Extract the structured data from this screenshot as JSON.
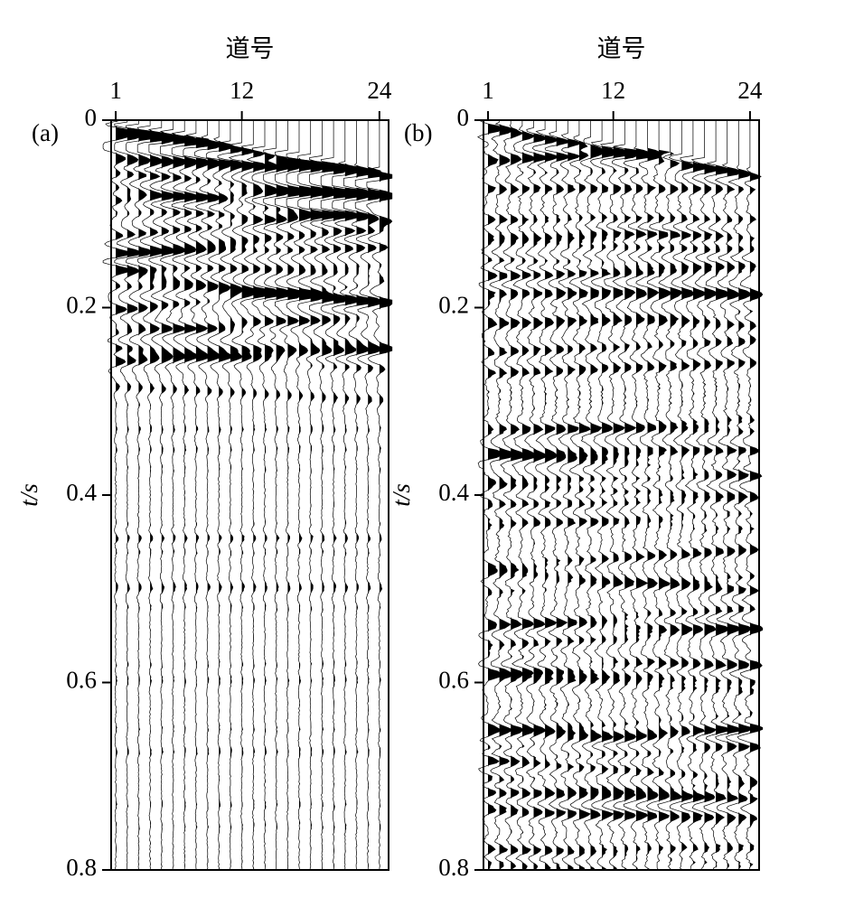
{
  "chart_data": [
    {
      "type": "seismic",
      "panel_label": "(a)",
      "xlabel": "道号",
      "ylabel": "t/s",
      "xlim": [
        0.6,
        24.8
      ],
      "xticks": [
        1,
        12,
        24
      ],
      "ylim": [
        0,
        0.8
      ],
      "yticks": [
        0,
        0.2,
        0.4,
        0.6,
        0.8
      ],
      "color": "#000000"
    },
    {
      "type": "seismic",
      "panel_label": "(b)",
      "xlabel": "道号",
      "ylabel": "t/s",
      "xlim": [
        0.6,
        24.8
      ],
      "xticks": [
        1,
        12,
        24
      ],
      "ylim": [
        0,
        0.8
      ],
      "yticks": [
        0,
        0.2,
        0.4,
        0.6,
        0.8
      ],
      "color": "#000000"
    }
  ]
}
